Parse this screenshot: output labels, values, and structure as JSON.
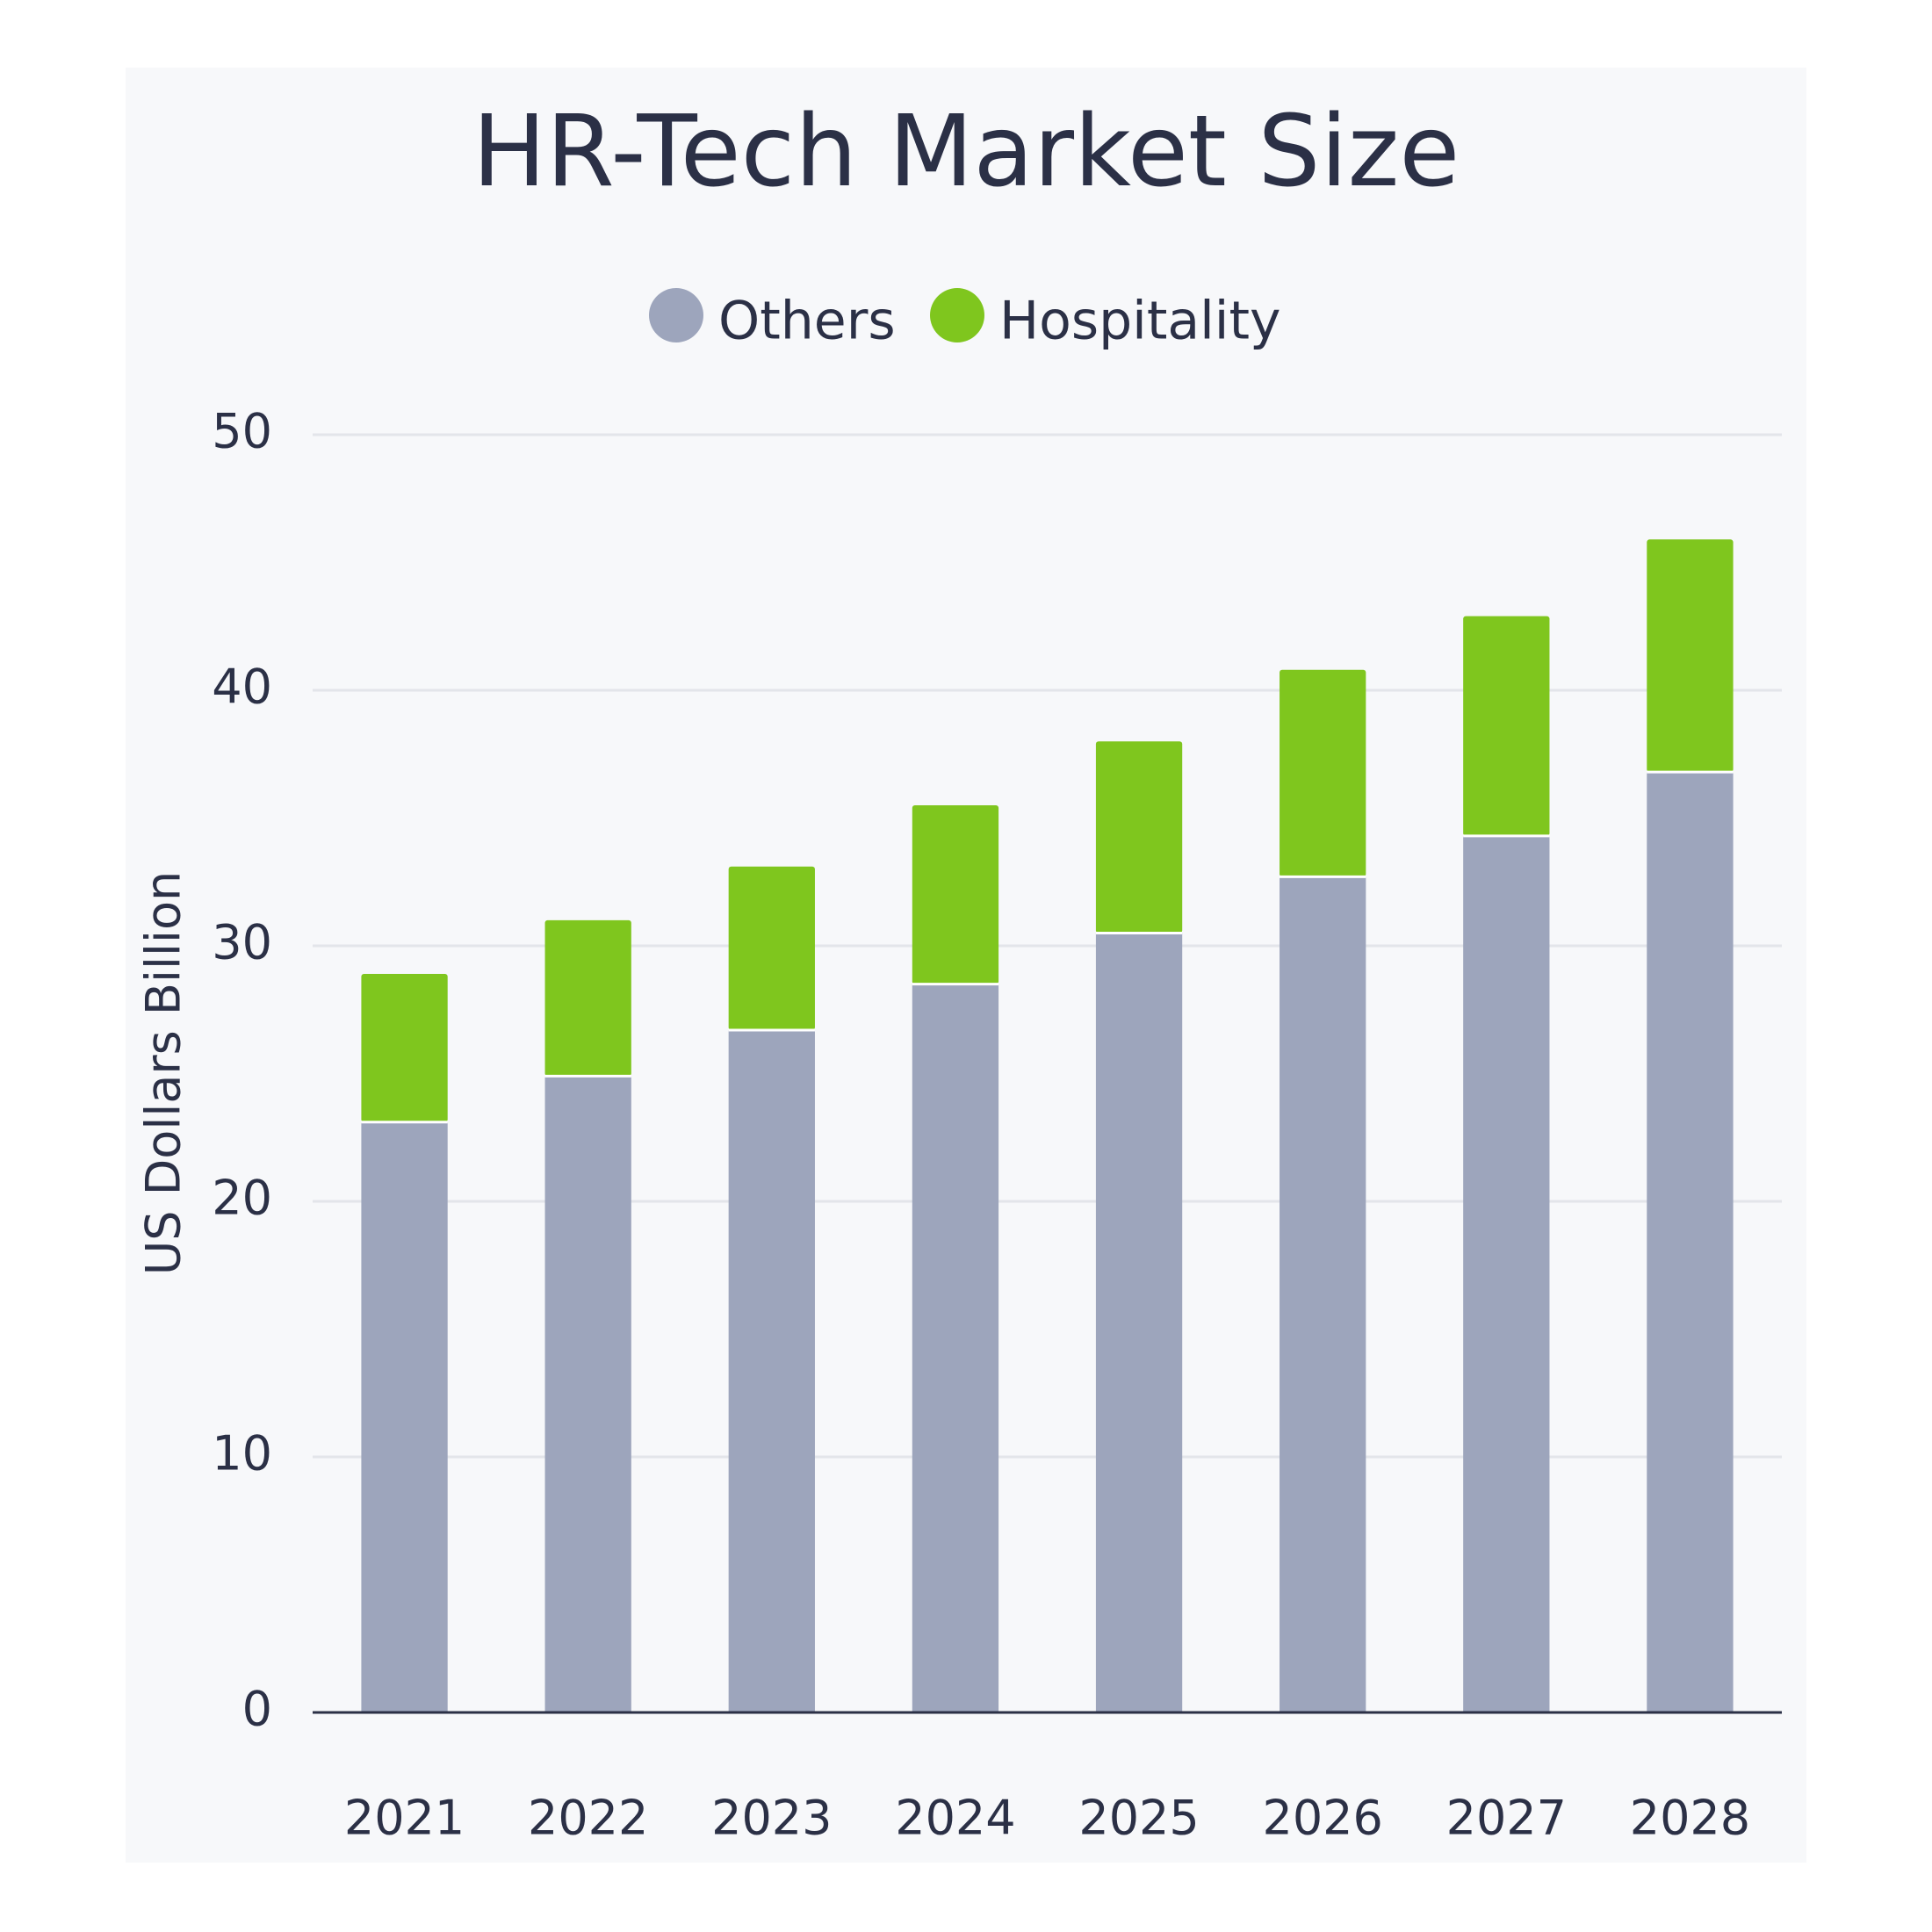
{
  "chart_data": {
    "type": "stacked_bar",
    "title": "HR-Tech Market Size",
    "y_label": "US Dollars Billion",
    "categories": [
      "2021",
      "2022",
      "2023",
      "2024",
      "2025",
      "2026",
      "2027",
      "2028"
    ],
    "series": [
      {
        "name": "Others",
        "color": "#9da5bc",
        "values": [
          23.1,
          24.9,
          26.7,
          28.5,
          30.5,
          32.7,
          34.3,
          36.8
        ]
      },
      {
        "name": "Hospitality",
        "color": "#7fc61e",
        "values": [
          5.8,
          6.1,
          6.4,
          7.0,
          7.5,
          8.1,
          8.6,
          9.1
        ]
      }
    ],
    "ylim": [
      0,
      50
    ],
    "yticks": [
      0,
      10,
      20,
      30,
      40,
      50
    ],
    "grid": true,
    "legend": "top"
  }
}
